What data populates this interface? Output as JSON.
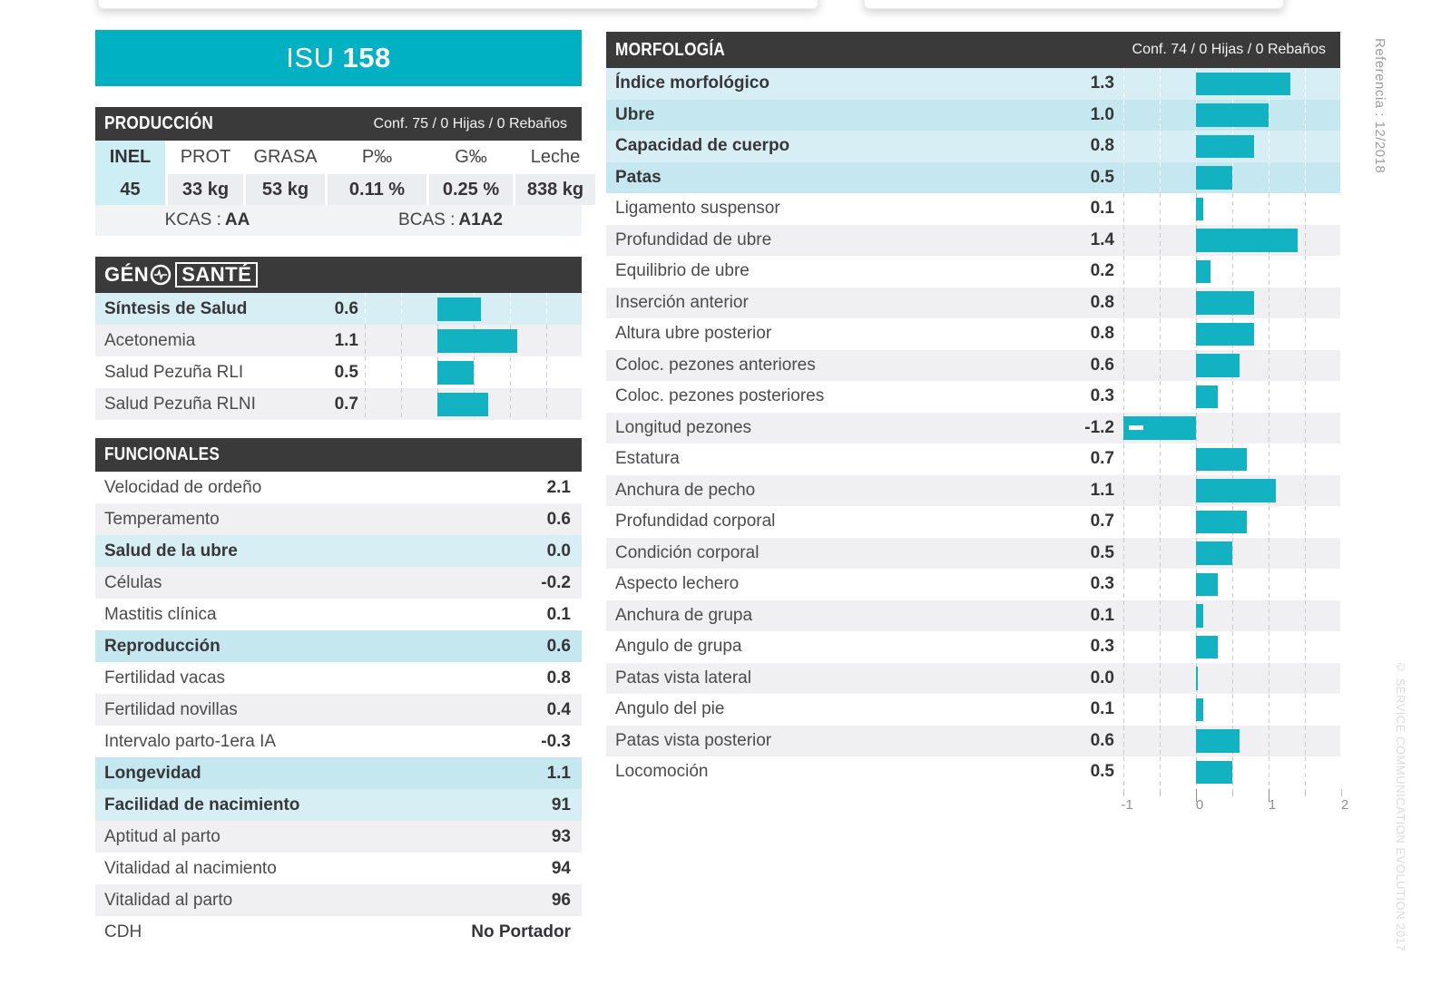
{
  "banner": {
    "prefix": "ISU",
    "number": "158"
  },
  "colors": {
    "teal_banner": "#00b0c3",
    "teal_bar": "#12b2c3",
    "dark_header": "#3b3a3a",
    "row_gray": "#f0f0f2",
    "highlight_light": "#d7eef5",
    "highlight_dark": "#c5e8f0",
    "inel_bg": "#cdeef4"
  },
  "produccion": {
    "title": "PRODUCCIÓN",
    "conf": "Conf. 75 / 0 Hijas / 0 Rebaños",
    "columns": [
      "INEL",
      "PROT",
      "GRASA",
      "P‰",
      "G‰",
      "Leche"
    ],
    "values": [
      "45",
      "33 kg",
      "53 kg",
      "0.11 %",
      "0.25 %",
      "838 kg"
    ],
    "kcas_label": "KCAS :",
    "kcas_value": "AA",
    "bcas_label": "BCAS :",
    "bcas_value": "A1A2"
  },
  "genosante": {
    "logo_part1": "GÉN",
    "logo_part2": "SANTÉ",
    "rows": [
      {
        "label": "Síntesis de Salud",
        "value": "0.6",
        "num": 0.6,
        "highlight": true
      },
      {
        "label": "Acetonemia",
        "value": "1.1",
        "num": 1.1,
        "highlight": false
      },
      {
        "label": "Salud Pezuña RLI",
        "value": "0.5",
        "num": 0.5,
        "highlight": false
      },
      {
        "label": "Salud Pezuña RLNI",
        "value": "0.7",
        "num": 0.7,
        "highlight": false
      }
    ]
  },
  "funcionales": {
    "title": "FUNCIONALES",
    "rows": [
      {
        "label": "Velocidad de ordeño",
        "value": "2.1",
        "highlight": false
      },
      {
        "label": "Temperamento",
        "value": "0.6",
        "highlight": false
      },
      {
        "label": "Salud de la ubre",
        "value": "0.0",
        "highlight": true
      },
      {
        "label": "Células",
        "value": "-0.2",
        "highlight": false
      },
      {
        "label": "Mastitis clínica",
        "value": "0.1",
        "highlight": false
      },
      {
        "label": "Reproducción",
        "value": "0.6",
        "highlight": true
      },
      {
        "label": "Fertilidad vacas",
        "value": "0.8",
        "highlight": false
      },
      {
        "label": "Fertilidad novillas",
        "value": "0.4",
        "highlight": false
      },
      {
        "label": "Intervalo parto-1era IA",
        "value": "-0.3",
        "highlight": false
      },
      {
        "label": "Longevidad",
        "value": "1.1",
        "highlight": true
      },
      {
        "label": "Facilidad de nacimiento",
        "value": "91",
        "highlight": true
      },
      {
        "label": "Aptitud al parto",
        "value": "93",
        "highlight": false
      },
      {
        "label": "Vitalidad al nacimiento",
        "value": "94",
        "highlight": false
      },
      {
        "label": "Vitalidad al parto",
        "value": "96",
        "highlight": false
      },
      {
        "label": "CDH",
        "value": "No Portador",
        "highlight": false
      }
    ]
  },
  "morfologia": {
    "title": "MORFOLOGÍA",
    "conf": "Conf. 74 / 0 Hijas / 0 Rebaños",
    "rows": [
      {
        "label": "Índice morfológico",
        "value": "1.3",
        "num": 1.3,
        "highlight": true
      },
      {
        "label": "Ubre",
        "value": "1.0",
        "num": 1.0,
        "highlight": true
      },
      {
        "label": "Capacidad de cuerpo",
        "value": "0.8",
        "num": 0.8,
        "highlight": true
      },
      {
        "label": "Patas",
        "value": "0.5",
        "num": 0.5,
        "highlight": true
      },
      {
        "label": "Ligamento suspensor",
        "value": "0.1",
        "num": 0.1,
        "highlight": false
      },
      {
        "label": "Profundidad de ubre",
        "value": "1.4",
        "num": 1.4,
        "highlight": false
      },
      {
        "label": "Equilibrio de ubre",
        "value": "0.2",
        "num": 0.2,
        "highlight": false
      },
      {
        "label": "Inserción anterior",
        "value": "0.8",
        "num": 0.8,
        "highlight": false
      },
      {
        "label": "Altura ubre posterior",
        "value": "0.8",
        "num": 0.8,
        "highlight": false
      },
      {
        "label": "Coloc. pezones anteriores",
        "value": "0.6",
        "num": 0.6,
        "highlight": false
      },
      {
        "label": "Coloc. pezones posteriores",
        "value": "0.3",
        "num": 0.3,
        "highlight": false
      },
      {
        "label": "Longitud pezones",
        "value": "-1.2",
        "num": -1.2,
        "highlight": false
      },
      {
        "label": "Estatura",
        "value": "0.7",
        "num": 0.7,
        "highlight": false
      },
      {
        "label": "Anchura de pecho",
        "value": "1.1",
        "num": 1.1,
        "highlight": false
      },
      {
        "label": "Profundidad corporal",
        "value": "0.7",
        "num": 0.7,
        "highlight": false
      },
      {
        "label": "Condición corporal",
        "value": "0.5",
        "num": 0.5,
        "highlight": false
      },
      {
        "label": "Aspecto lechero",
        "value": "0.3",
        "num": 0.3,
        "highlight": false
      },
      {
        "label": "Anchura de grupa",
        "value": "0.1",
        "num": 0.1,
        "highlight": false
      },
      {
        "label": "Angulo de grupa",
        "value": "0.3",
        "num": 0.3,
        "highlight": false
      },
      {
        "label": "Patas vista lateral",
        "value": "0.0",
        "num": 0.0,
        "highlight": false
      },
      {
        "label": "Angulo del pie",
        "value": "0.1",
        "num": 0.1,
        "highlight": false
      },
      {
        "label": "Patas vista posterior",
        "value": "0.6",
        "num": 0.6,
        "highlight": false
      },
      {
        "label": "Locomoción",
        "value": "0.5",
        "num": 0.5,
        "highlight": false
      }
    ],
    "axis_ticks": [
      "-1",
      "0",
      "1",
      "2"
    ]
  },
  "side": {
    "reference": "Referencia : 12/2018",
    "copyright": "© SERVICE COMMUNICATION EVOLUTION 2017"
  },
  "chart_data": [
    {
      "type": "table",
      "title": "PRODUCCIÓN",
      "columns": [
        "INEL",
        "PROT",
        "GRASA",
        "P‰",
        "G‰",
        "Leche"
      ],
      "rows": [
        [
          "45",
          "33 kg",
          "53 kg",
          "0.11 %",
          "0.25 %",
          "838 kg"
        ]
      ]
    },
    {
      "type": "bar",
      "orientation": "horizontal",
      "title": "GÉNOSANTÉ",
      "categories": [
        "Síntesis de Salud",
        "Acetonemia",
        "Salud Pezuña RLI",
        "Salud Pezuña RLNI"
      ],
      "values": [
        0.6,
        1.1,
        0.5,
        0.7
      ],
      "xlim": [
        -1,
        2
      ],
      "grid": "dashed vertical every 0.5",
      "legend_position": "none"
    },
    {
      "type": "bar",
      "orientation": "horizontal",
      "title": "MORFOLOGÍA",
      "categories": [
        "Índice morfológico",
        "Ubre",
        "Capacidad de cuerpo",
        "Patas",
        "Ligamento suspensor",
        "Profundidad de ubre",
        "Equilibrio de ubre",
        "Inserción anterior",
        "Altura ubre posterior",
        "Coloc. pezones anteriores",
        "Coloc. pezones posteriores",
        "Longitud pezones",
        "Estatura",
        "Anchura de pecho",
        "Profundidad corporal",
        "Condición corporal",
        "Aspecto lechero",
        "Anchura de grupa",
        "Angulo de grupa",
        "Patas vista lateral",
        "Angulo del pie",
        "Patas vista posterior",
        "Locomoción"
      ],
      "values": [
        1.3,
        1.0,
        0.8,
        0.5,
        0.1,
        1.4,
        0.2,
        0.8,
        0.8,
        0.6,
        0.3,
        -1.2,
        0.7,
        1.1,
        0.7,
        0.5,
        0.3,
        0.1,
        0.3,
        0.0,
        0.1,
        0.6,
        0.5
      ],
      "xlim": [
        -1,
        2
      ],
      "xticks": [
        -1,
        0,
        1,
        2
      ],
      "grid": "dashed vertical every 0.5",
      "legend_position": "none"
    }
  ]
}
